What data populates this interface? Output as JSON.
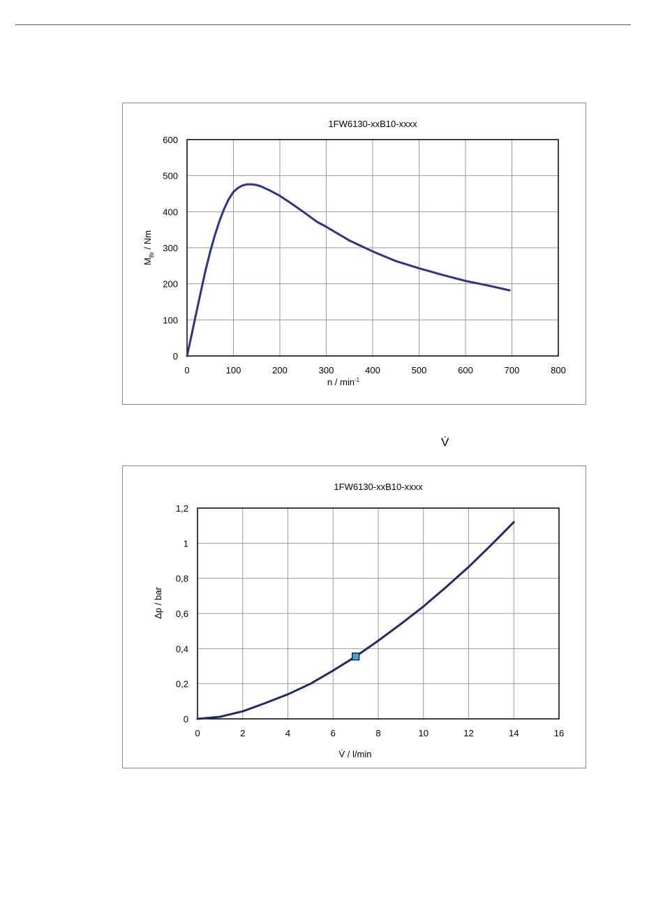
{
  "page": {
    "vdot_symbol": "V̇"
  },
  "chart_data": [
    {
      "type": "line",
      "title": "1FW6130-xxB10-xxxx",
      "xlabel_main": "n / min",
      "xlabel_sup": "-1",
      "ylabel_main": "M",
      "ylabel_sub": "Br",
      "ylabel_tail": " / Nm",
      "xlim": [
        0,
        800
      ],
      "ylim": [
        0,
        600
      ],
      "xticks": [
        0,
        100,
        200,
        300,
        400,
        500,
        600,
        700,
        800
      ],
      "yticks": [
        0,
        100,
        200,
        300,
        400,
        500,
        600
      ],
      "xtick_labels": [
        "0",
        "100",
        "200",
        "300",
        "400",
        "500",
        "600",
        "700",
        "800"
      ],
      "ytick_labels": [
        "0",
        "100",
        "200",
        "300",
        "400",
        "500",
        "600"
      ],
      "grid": true,
      "series_color": "#2e3192",
      "series": [
        {
          "x": [
            0,
            10,
            20,
            30,
            40,
            50,
            60,
            70,
            80,
            90,
            100,
            110,
            120,
            130,
            140,
            150,
            160,
            180,
            200,
            220,
            250,
            280,
            300,
            350,
            400,
            450,
            500,
            550,
            600,
            650,
            695
          ],
          "values": [
            0,
            60,
            120,
            180,
            238,
            290,
            335,
            375,
            408,
            435,
            455,
            466,
            473,
            476,
            476,
            474,
            470,
            458,
            444,
            427,
            400,
            372,
            358,
            320,
            290,
            263,
            243,
            225,
            208,
            195,
            182
          ]
        }
      ]
    },
    {
      "type": "line",
      "title": "1FW6130-xxB10-xxxx",
      "xlabel": "V̇ / l/min",
      "ylabel": "Δp / bar",
      "xlim": [
        0,
        16
      ],
      "ylim": [
        0,
        1.2
      ],
      "xticks": [
        0,
        2,
        4,
        6,
        8,
        10,
        12,
        14,
        16
      ],
      "yticks": [
        0,
        0.2,
        0.4,
        0.6,
        0.8,
        1.0,
        1.2
      ],
      "xtick_labels": [
        "0",
        "2",
        "4",
        "6",
        "8",
        "10",
        "12",
        "14",
        "16"
      ],
      "ytick_labels": [
        "0",
        "0,2",
        "0,4",
        "0,6",
        "0,8",
        "1",
        "1,2"
      ],
      "grid": true,
      "series_color": "#1f2a6b",
      "marker_color": "#29abe2",
      "series": [
        {
          "x": [
            0,
            1,
            2,
            3,
            4,
            5,
            6,
            7,
            8,
            9,
            10,
            11,
            12,
            13,
            14
          ],
          "values": [
            0,
            0.012,
            0.043,
            0.09,
            0.14,
            0.2,
            0.275,
            0.355,
            0.445,
            0.54,
            0.64,
            0.75,
            0.865,
            0.99,
            1.12
          ]
        }
      ],
      "marker_point": {
        "x": 7,
        "y": 0.355
      }
    }
  ]
}
